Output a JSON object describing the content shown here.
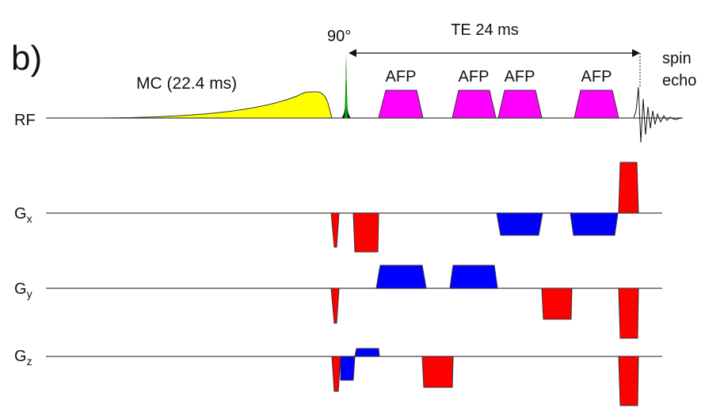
{
  "panel_label": "b)",
  "rf": {
    "axis_label": "RF",
    "mc_label": "MC (22.4 ms)",
    "excitation_label": "90°",
    "te_label": "TE 24 ms",
    "afp_labels": [
      "AFP",
      "AFP",
      "AFP",
      "AFP"
    ],
    "echo_label_line1": "spin",
    "echo_label_line2": "echo"
  },
  "gradients": [
    {
      "letter": "G",
      "sub": "x"
    },
    {
      "letter": "G",
      "sub": "y"
    },
    {
      "letter": "G",
      "sub": "z"
    }
  ],
  "colors": {
    "mc": "#ffff00",
    "excitation": "#00a000",
    "afp": "#ff00ff",
    "positive_lobe": "#ff0000",
    "negative_lobe": "#0000ff"
  }
}
